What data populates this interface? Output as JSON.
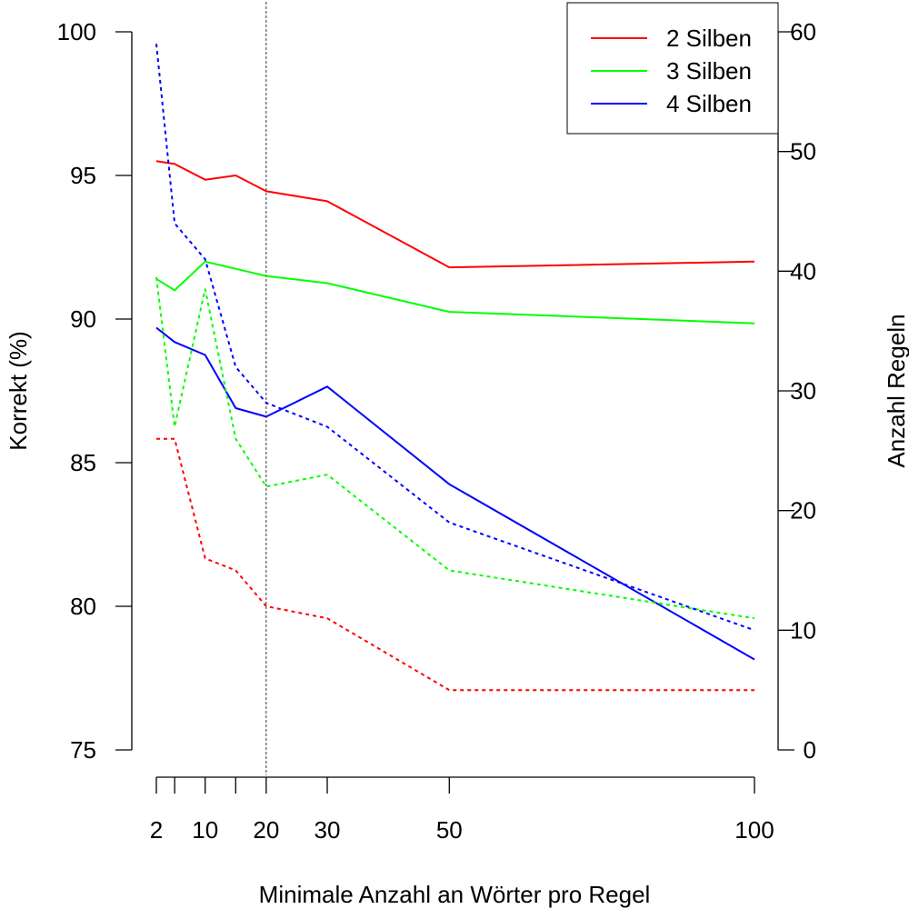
{
  "chart_data": {
    "type": "line",
    "xlabel": "Minimale Anzahl an Wörter pro Regel",
    "ylabel": "Korrekt (%)",
    "y2label": "Anzahl Regeln",
    "x": [
      2,
      5,
      10,
      15,
      20,
      30,
      50,
      100
    ],
    "x_tick_values": [
      2,
      5,
      10,
      15,
      20,
      30,
      50,
      100
    ],
    "x_tick_labels": [
      "2",
      "10",
      "20",
      "30",
      "50",
      "100"
    ],
    "x_tick_labels_at": [
      2,
      10,
      20,
      30,
      50,
      100
    ],
    "ylim": [
      75,
      100
    ],
    "y_ticks": [
      75,
      80,
      85,
      90,
      95,
      100
    ],
    "y2lim": [
      0,
      60
    ],
    "y2_ticks": [
      0,
      10,
      20,
      30,
      40,
      50,
      60
    ],
    "reference_line_x": 20,
    "legend_position": "top-right",
    "series": [
      {
        "name": "2 Silben",
        "color": "#ff0000",
        "axis": "left",
        "style": "solid",
        "values": [
          95.5,
          95.4,
          94.85,
          95.0,
          94.45,
          94.1,
          91.8,
          92.0
        ]
      },
      {
        "name": "3 Silben",
        "color": "#00ff00",
        "axis": "left",
        "style": "solid",
        "values": [
          91.4,
          91.0,
          92.0,
          91.75,
          91.5,
          91.25,
          90.25,
          89.85
        ]
      },
      {
        "name": "4 Silben",
        "color": "#0000ff",
        "axis": "left",
        "style": "solid",
        "values": [
          89.7,
          89.2,
          88.75,
          86.9,
          86.6,
          87.65,
          84.25,
          78.15
        ]
      },
      {
        "color": "#ff0000",
        "axis": "right",
        "style": "dotted",
        "values": [
          26,
          26,
          16,
          15,
          12,
          11,
          5,
          5
        ]
      },
      {
        "color": "#00ff00",
        "axis": "right",
        "style": "dotted",
        "values": [
          39.5,
          27,
          38.5,
          26,
          22,
          23,
          15,
          11
        ]
      },
      {
        "color": "#0000ff",
        "axis": "right",
        "style": "dotted",
        "values": [
          59,
          44,
          41,
          32,
          29,
          27,
          19,
          10
        ]
      }
    ]
  }
}
